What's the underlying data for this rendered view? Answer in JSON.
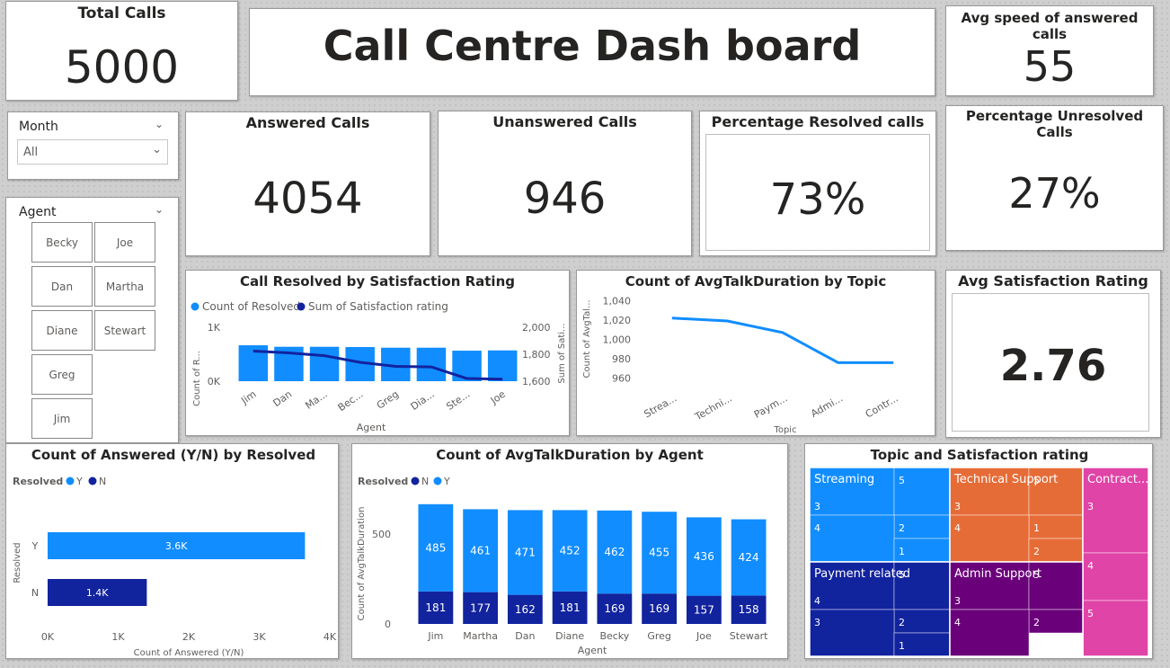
{
  "kpis": {
    "total_calls": {
      "label": "Total Calls",
      "value": "5000"
    },
    "dashboard_title": "Call Centre Dash board",
    "avg_speed": {
      "label": "Avg speed of answered calls",
      "value": "55"
    },
    "answered": {
      "label": "Answered Calls",
      "value": "4054"
    },
    "unanswered": {
      "label": "Unanswered Calls",
      "value": "946"
    },
    "pct_resolved": {
      "label": "Percentage Resolved calls",
      "value": "73%"
    },
    "pct_unresolved": {
      "label": "Percentage Unresolved Calls",
      "value": "27%"
    },
    "avg_satisfaction": {
      "label": "Avg Satisfaction Rating",
      "value": "2.76"
    }
  },
  "slicers": {
    "month": {
      "label": "Month",
      "selected": "All"
    },
    "agent": {
      "label": "Agent",
      "options": [
        "Becky",
        "Joe",
        "Dan",
        "Martha",
        "Diane",
        "Stewart",
        "Greg",
        "Jim"
      ]
    }
  },
  "colors": {
    "light_blue": "#118dff",
    "dark_blue": "#12239e",
    "orange": "#e66c37",
    "purple": "#6b007b",
    "pink": "#e044a7"
  },
  "chart_data": [
    {
      "type": "bar",
      "title": "Call Resolved by Satisfaction Rating",
      "legend": [
        "Count of Resolved",
        "Sum of Satisfaction rating"
      ],
      "legend_position": "top-left",
      "categories": [
        "Jim",
        "Dan",
        "Ma...",
        "Bec...",
        "Greg",
        "Dia...",
        "Ste...",
        "Joe"
      ],
      "xlabel": "Agent",
      "ylabel": "Count of R...",
      "y2label": "Sum of Sati...",
      "ylim": [
        0,
        1000
      ],
      "y_ticks": [
        "1K",
        "0K"
      ],
      "y2lim": [
        1600,
        2000
      ],
      "y2_ticks": [
        "2,000",
        "1,800",
        "1,600"
      ],
      "series": [
        {
          "name": "Count of Resolved",
          "kind": "bar",
          "values": [
            666,
            638,
            638,
            633,
            621,
            621,
            566,
            571
          ]
        },
        {
          "name": "Sum of Satisfaction rating",
          "kind": "line",
          "values": [
            1823,
            1810,
            1789,
            1740,
            1710,
            1706,
            1620,
            1615
          ]
        }
      ]
    },
    {
      "type": "line",
      "title": "Count of AvgTalkDuration by Topic",
      "categories": [
        "Strea...",
        "Techni...",
        "Paym...",
        "Admi...",
        "Contr..."
      ],
      "xlabel": "Topic",
      "ylabel": "Count of AvgTal...",
      "ylim": [
        955,
        1045
      ],
      "y_ticks": [
        1040,
        1020,
        1000,
        980,
        960
      ],
      "y_tick_labels": [
        "1,040",
        "1,020",
        "1,000",
        "980",
        "960"
      ],
      "values": [
        1022,
        1019,
        1007,
        976,
        976
      ]
    },
    {
      "type": "bar",
      "orientation": "horizontal",
      "title": "Count of Answered (Y/N) by Resolved",
      "legend_title": "Resolved",
      "legend": [
        "Y",
        "N"
      ],
      "legend_position": "top-left",
      "categories": [
        "Y",
        "N"
      ],
      "values": [
        3648,
        1406
      ],
      "data_labels": [
        "3.6K",
        "1.4K"
      ],
      "xlabel": "Count of Answered (Y/N)",
      "ylabel": "Resolved",
      "xlim": [
        0,
        4000
      ],
      "x_ticks": [
        "0K",
        "1K",
        "2K",
        "3K",
        "4K"
      ]
    },
    {
      "type": "bar",
      "stacked": true,
      "title": "Count of AvgTalkDuration by Agent",
      "legend_title": "Resolved",
      "legend": [
        "N",
        "Y"
      ],
      "legend_position": "top-left",
      "categories": [
        "Jim",
        "Martha",
        "Dan",
        "Diane",
        "Becky",
        "Greg",
        "Joe",
        "Stewart"
      ],
      "xlabel": "Agent",
      "ylabel": "Count of AvgTalkDuration",
      "ylim": [
        0,
        700
      ],
      "y_ticks": [
        500,
        0
      ],
      "series": [
        {
          "name": "N",
          "values": [
            181,
            177,
            162,
            181,
            169,
            169,
            157,
            158
          ]
        },
        {
          "name": "Y",
          "values": [
            485,
            461,
            471,
            452,
            462,
            455,
            436,
            424
          ]
        }
      ]
    },
    {
      "type": "heatmap",
      "subtype": "treemap",
      "title": "Topic and Satisfaction rating",
      "groups": [
        {
          "name": "Streaming",
          "ratings": [
            "3",
            "5",
            "2",
            "4",
            "1"
          ]
        },
        {
          "name": "Technical Support",
          "ratings": [
            "3",
            "5",
            "1",
            "4",
            "2"
          ]
        },
        {
          "name": "Contract...",
          "ratings": [
            "3",
            "4",
            "5"
          ]
        },
        {
          "name": "Payment related",
          "ratings": [
            "4",
            "5",
            "2",
            "3",
            "1"
          ]
        },
        {
          "name": "Admin Support",
          "ratings": [
            "3",
            "5",
            "2",
            "4"
          ]
        }
      ]
    }
  ]
}
